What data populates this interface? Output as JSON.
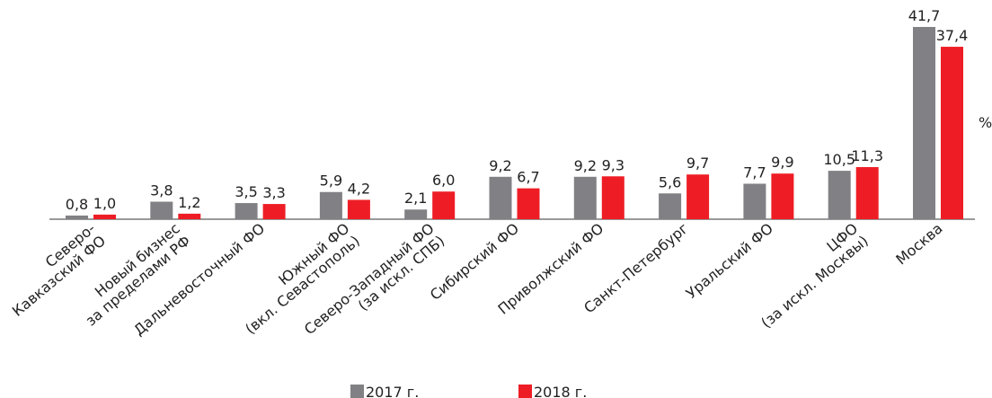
{
  "chart_data": {
    "type": "bar",
    "unit": "%",
    "categories": [
      [
        "Северо-",
        "Кавказский ФО"
      ],
      [
        "Новый бизнес",
        "за пределами РФ"
      ],
      [
        "Дальневосточный ФО"
      ],
      [
        "Южный ФО",
        "(вкл. Севастополь)"
      ],
      [
        "Северо-Западный ФО",
        "(за искл. СПБ)"
      ],
      [
        "Сибирский ФО"
      ],
      [
        "Приволжский ФО"
      ],
      [
        "Санкт-Петербург"
      ],
      [
        "Уральский ФО"
      ],
      [
        "ЦФО",
        "(за искл. Москвы)"
      ],
      [
        "Москва"
      ]
    ],
    "series": [
      {
        "name": "2017 г.",
        "color": "#818185",
        "values": [
          0.8,
          3.8,
          3.5,
          5.9,
          2.1,
          9.2,
          9.2,
          5.6,
          7.7,
          10.5,
          41.7
        ],
        "value_labels": [
          "0,8",
          "3,8",
          "3,5",
          "5,9",
          "2,1",
          "9,2",
          "9,2",
          "5,6",
          "7,7",
          "10,5",
          "41,7"
        ]
      },
      {
        "name": "2018 г.",
        "color": "#ee1d25",
        "values": [
          1.0,
          1.2,
          3.3,
          4.2,
          6.0,
          6.7,
          9.3,
          9.7,
          9.9,
          11.3,
          37.4
        ],
        "value_labels": [
          "1,0",
          "1,2",
          "3,3",
          "4,2",
          "6,0",
          "6,7",
          "9,3",
          "9,7",
          "9,9",
          "11,3",
          "37,4"
        ]
      }
    ]
  }
}
